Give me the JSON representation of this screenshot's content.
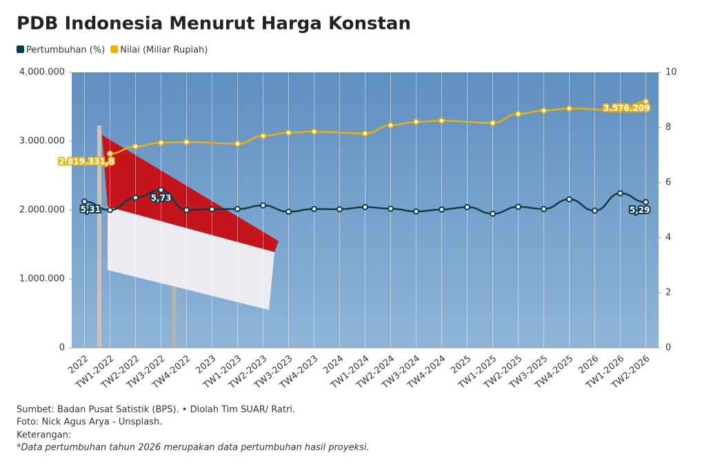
{
  "chart_data": {
    "type": "line",
    "title": "PDB Indonesia Menurut Harga Konstan",
    "categories": [
      "2022",
      "TW1-2022",
      "TW2-2022",
      "TW3-2022",
      "TW4-2022",
      "2023",
      "TW1-2023",
      "TW2-2023",
      "TW3-2023",
      "TW4-2023",
      "2024",
      "TW1-2024",
      "TW2-2024",
      "TW3-2024",
      "TW4-2024",
      "2025",
      "TW1-2025",
      "TW2-2025",
      "TW3-2025",
      "TW4-2025",
      "2026",
      "TW1-2026",
      "TW2-2026"
    ],
    "series": [
      {
        "name": "Pertumbuhan (%)",
        "color": "#0d3b4a",
        "axis": "y2",
        "values": [
          5.31,
          5.0,
          5.45,
          5.73,
          5.0,
          5.03,
          5.04,
          5.17,
          4.94,
          5.04,
          5.03,
          5.11,
          5.05,
          4.95,
          5.02,
          5.11,
          4.87,
          5.12,
          5.04,
          5.39,
          4.98,
          5.61,
          5.29
        ],
        "value_labels": [
          "5,31",
          null,
          null,
          "5,73",
          null,
          null,
          null,
          null,
          null,
          null,
          null,
          null,
          null,
          null,
          null,
          null,
          null,
          null,
          null,
          null,
          null,
          null,
          "5,29"
        ]
      },
      {
        "name": "Nilai (Miliar Rupiah)",
        "color": "#e8b10c",
        "values": [
          null,
          2819331.8,
          2923700,
          2977000,
          2988000,
          null,
          2961600,
          3075800,
          3124900,
          3139100,
          null,
          3112300,
          3231100,
          3279600,
          3297100,
          null,
          3264500,
          3396300,
          3444800,
          3474900,
          null,
          3450000,
          3576209
        ],
        "value_labels": [
          null,
          "2.819.331,8",
          null,
          null,
          null,
          null,
          null,
          null,
          null,
          null,
          null,
          null,
          null,
          null,
          null,
          null,
          null,
          null,
          null,
          null,
          null,
          null,
          "3.576.209"
        ]
      }
    ],
    "span_gaps": true,
    "ylim": [
      0,
      4000000
    ],
    "yticks": [
      0,
      {
        "value": 1000000,
        "label": "1.000.000"
      },
      {
        "value": 2000000,
        "label": "2.000.000"
      },
      {
        "value": 3000000,
        "label": "3.000.000"
      },
      {
        "value": 4000000,
        "label": "4.000.000"
      }
    ],
    "y2lim": [
      0,
      10
    ],
    "y2ticks": [
      0,
      2,
      4,
      6,
      8,
      10
    ],
    "source": "Sumbet: Badan Pusat Satistik (BPS). • Diolah Tim SUAR/ Ratri.",
    "photo_credit": "Foto: Nick Agus Arya - Unsplash.",
    "note_heading": "Keterangan:",
    "note": "*Data pertumbuhan tahun 2026 merupakan data pertumbuhan hasil proyeksi."
  }
}
